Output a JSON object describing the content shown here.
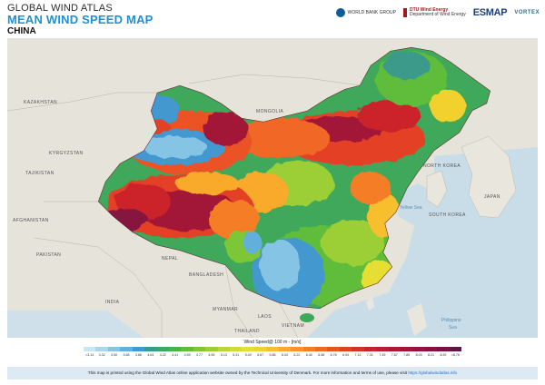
{
  "header": {
    "line1": "GLOBAL WIND ATLAS",
    "line2": "MEAN WIND SPEED MAP",
    "line3": "CHINA"
  },
  "logos": {
    "world_bank": "WORLD BANK GROUP",
    "dtu_line1": "DTU Wind Energy",
    "dtu_line2": "Department of Wind Energy",
    "esmap": "ESMAP",
    "vortex": "VORTEX"
  },
  "places": {
    "kazakhstan": "KAZAKHSTAN",
    "mongolia": "MONGOLIA",
    "kyrgyzstan": "KYRGYZSTAN",
    "tajikistan": "TAJIKISTAN",
    "afghanistan": "AFGHANISTAN",
    "pakistan": "PAKISTAN",
    "nepal": "NEPAL",
    "india": "INDIA",
    "bangladesh": "BANGLADESH",
    "myanmar": "MYANMAR",
    "thailand": "THAILAND",
    "laos": "LAOS",
    "vietnam": "VIETNAM",
    "north_korea": "NORTH KOREA",
    "south_korea": "SOUTH KOREA",
    "japan": "JAPAN",
    "yellow_sea": "Yellow Sea",
    "philippine_sea_1": "Philippine",
    "philippine_sea_2": "Sea"
  },
  "legend": {
    "title": "Wind Speed@ 100 m - [m/s]",
    "ticks": [
      "<3.14",
      "3.32",
      "3.50",
      "3.68",
      "3.86",
      "4.04",
      "4.22",
      "4.41",
      "4.59",
      "4.77",
      "4.95",
      "5.13",
      "5.31",
      "5.49",
      "5.67",
      "5.86",
      "6.04",
      "6.22",
      "6.40",
      "6.58",
      "6.76",
      "6.94",
      "7.12",
      "7.31",
      "7.49",
      "7.67",
      "7.85",
      "8.03",
      "8.21",
      "8.39",
      ">8.76"
    ],
    "colors": [
      "#c8e6f3",
      "#a9d7ee",
      "#86c4e6",
      "#62afdc",
      "#4398cf",
      "#3b9a8a",
      "#3fa85a",
      "#49b445",
      "#5fbd3b",
      "#7dc638",
      "#9bcf36",
      "#b8d734",
      "#d2dd32",
      "#e6de31",
      "#f2d12f",
      "#f7bf2e",
      "#f9aa2c",
      "#f8942a",
      "#f57d28",
      "#f16726",
      "#eb5225",
      "#e33f25",
      "#d82f27",
      "#cc232b",
      "#bf1a30",
      "#b11634",
      "#a21438",
      "#93143c",
      "#84143f",
      "#741442",
      "#651345"
    ]
  },
  "footer": {
    "text": "This map is printed using the Global Wind Atlas online application website owned by the Technical University of Denmark. For more information and terms of use, please visit",
    "link": "https://globalwindatlas.info"
  }
}
